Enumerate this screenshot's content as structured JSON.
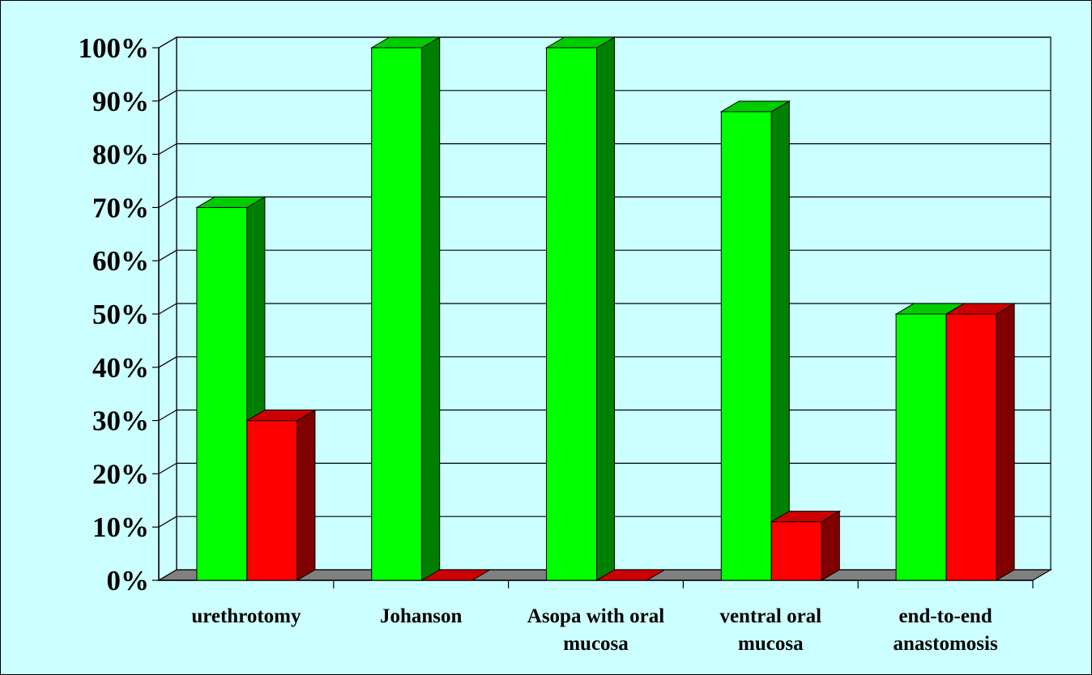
{
  "chart_data": {
    "type": "bar",
    "style": "3d-clustered",
    "categories": [
      [
        "urethrotomy"
      ],
      [
        "Johanson"
      ],
      [
        "Asopa with oral",
        "mucosa"
      ],
      [
        "ventral oral",
        "mucosa"
      ],
      [
        "end-to-end",
        "anastomosis"
      ]
    ],
    "series": [
      {
        "values": [
          70,
          100,
          100,
          88,
          50
        ],
        "color": "#00ff00",
        "side_color": "#008000",
        "top_color": "#00cc00"
      },
      {
        "values": [
          30,
          0,
          0,
          11,
          50
        ],
        "color": "#ff0000",
        "side_color": "#800000",
        "top_color": "#cc0000"
      }
    ],
    "yticks": [
      "0%",
      "10%",
      "20%",
      "30%",
      "40%",
      "50%",
      "60%",
      "70%",
      "80%",
      "90%",
      "100%"
    ],
    "ylim": [
      0,
      100
    ],
    "grid": true,
    "legend": "none",
    "background_color": "#ccffff",
    "floor_color": "#808080"
  }
}
